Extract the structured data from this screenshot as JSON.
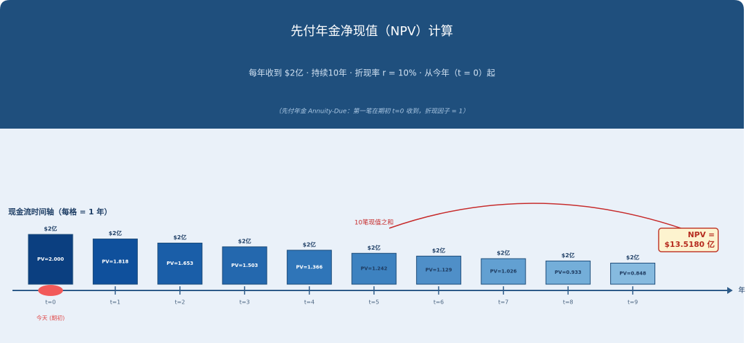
{
  "chart_data": {
    "type": "bar",
    "title": "先付年金净现值（NPV）计算",
    "subtitle": "每年收到 $2亿 · 持续10年 · 折现率 r = 10% · 从今年（t = 0）起",
    "note": "（先付年金 Annuity-Due：第一笔在期初 t=0 收到，折现因子 = 1）",
    "axis_title": "现金流时间轴（每格 = 1 年）",
    "axis_end_label": "年",
    "today_label": "今天 (期初)",
    "sum_annotation": "10笔现值之和",
    "npv_label": [
      "NPV =",
      "$13.5180 亿"
    ],
    "categories": [
      "t=0",
      "t=1",
      "t=2",
      "t=3",
      "t=4",
      "t=5",
      "t=6",
      "t=7",
      "t=8",
      "t=9"
    ],
    "cashflow_labels": [
      "$2亿",
      "$2亿",
      "$2亿",
      "$2亿",
      "$2亿",
      "$2亿",
      "$2亿",
      "$2亿",
      "$2亿",
      "$2亿"
    ],
    "values": [
      2.0,
      1.818,
      1.653,
      1.503,
      1.366,
      1.242,
      1.129,
      1.026,
      0.933,
      0.848
    ],
    "value_labels": [
      "PV=2.000",
      "PV=1.818",
      "PV=1.653",
      "PV=1.503",
      "PV=1.366",
      "PV=1.242",
      "PV=1.129",
      "PV=1.026",
      "PV=0.933",
      "PV=0.848"
    ],
    "colors": [
      "#0b3f80",
      "#0f509c",
      "#1a5ea8",
      "#2468ae",
      "#2f75b8",
      "#3d82c0",
      "#4f8fc8",
      "#62a0d2",
      "#74aed9",
      "#86badf"
    ]
  }
}
